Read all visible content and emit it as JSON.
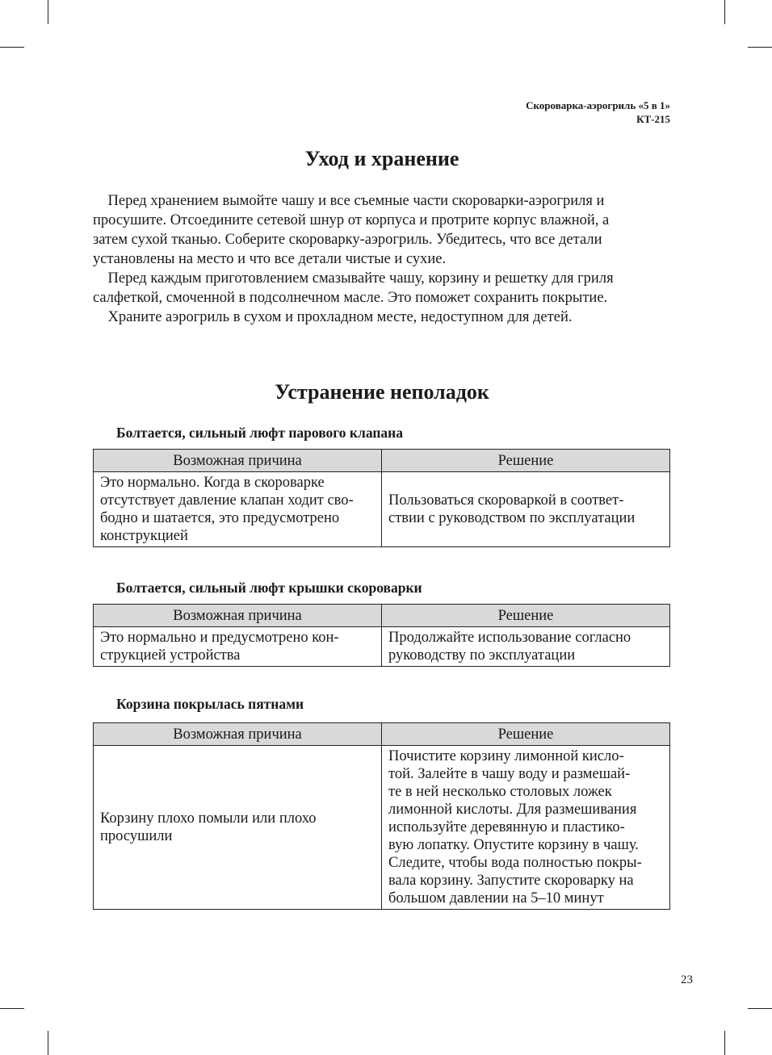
{
  "header": {
    "line1": "Скороварка-аэрогриль «5 в 1»",
    "line2": "КТ-215"
  },
  "care": {
    "title": "Уход и хранение",
    "text": "    Перед хранением вымойте чашу и все съемные части скороварки-аэрогриля и\nпросушите. Отсоедините сетевой шнур от корпуса и протрите корпус влажной, а\nзатем сухой тканью. Соберите скороварку-аэрогриль. Убедитесь, что все детали\nустановлены на место и что все детали чистые и сухие.\n    Перед каждым приготовлением смазывайте чашу, корзину и решетку для гриля\nсалфеткой, смоченной в подсолнечном масле. Это поможет сохранить покрытие.\n    Храните аэрогриль в сухом и прохладном месте, недоступном для детей."
  },
  "troubleshooting": {
    "title": "Устранение неполадок",
    "col_cause": "Возможная причина",
    "col_solution": "Решение",
    "problems": [
      {
        "heading": "Болтается, сильный люфт парового клапана",
        "cause": "Это нормально. Когда в скороварке\nотсутствует давление клапан ходит сво-\nбодно и шатается, это предусмотрено\nконструкцией",
        "solution": "Пользоваться скороваркой в соответ-\nствии с руководством по эксплуатации"
      },
      {
        "heading": "Болтается, сильный люфт крышки скороварки",
        "cause": "Это нормально и предусмотрено кон-\nструкцией устройства",
        "solution": "Продолжайте использование согласно\nруководству по эксплуатации"
      },
      {
        "heading": "Корзина покрылась пятнами",
        "cause": "Корзину плохо помыли или плохо\nпросушили",
        "solution": "Почистите корзину лимонной кисло-\nтой. Залейте в чашу воду и размешай-\nте в ней несколько столовых ложек\nлимонной кислоты. Для размешивания\nиспользуйте деревянную и пластико-\nвую лопатку. Опустите корзину в чашу.\nСледите, чтобы вода полностью покры-\nвала корзину. Запустите скороварку на\nбольшом давлении на 5–10 минут"
      }
    ]
  },
  "page_number": "23"
}
